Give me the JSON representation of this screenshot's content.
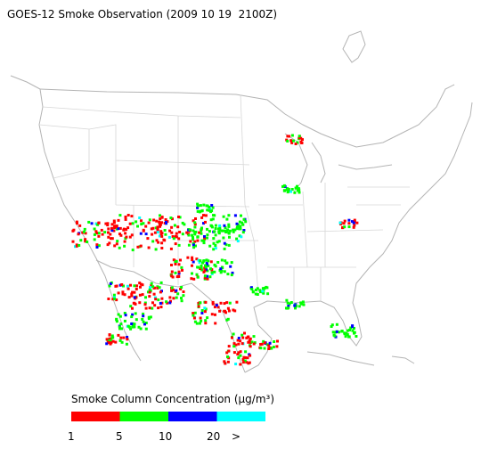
{
  "title": "GOES-12 Smoke Observation (2009 10 19  2100Z)",
  "legend": {
    "title": "Smoke Column Concentration (µg/m³)",
    "labels": [
      "1",
      "5",
      "10",
      "20",
      ">"
    ],
    "colors": [
      "#ff0000",
      "#00ff00",
      "#0000ff",
      "#00ffff"
    ]
  }
}
